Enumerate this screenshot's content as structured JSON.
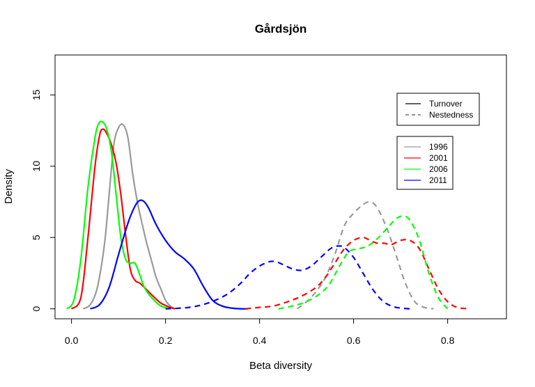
{
  "chart_data": {
    "type": "line",
    "title": "Gårdsjön",
    "xlabel": "Beta diversity",
    "ylabel": "Density",
    "xlim": [
      -0.035,
      0.925
    ],
    "ylim": [
      -0.7,
      17.8
    ],
    "xticks": [
      "0.0",
      "0.2",
      "0.4",
      "0.6",
      "0.8"
    ],
    "yticks": [
      "0",
      "5",
      "10",
      "15"
    ],
    "grid": false,
    "legends": [
      {
        "placement": "top-right",
        "entries": [
          {
            "label": "Turnover",
            "linestyle": "solid",
            "color": "#000000"
          },
          {
            "label": "Nestedness",
            "linestyle": "dashed",
            "color": "#555555"
          }
        ]
      },
      {
        "placement": "right",
        "entries": [
          {
            "label": "1996",
            "color": "#999999"
          },
          {
            "label": "2001",
            "color": "#ff0000"
          },
          {
            "label": "2006",
            "color": "#00ff00"
          },
          {
            "label": "2011",
            "color": "#0000ff"
          }
        ]
      }
    ],
    "series": [
      {
        "name": "1996",
        "kind": "Turnover",
        "color": "#999999",
        "dashed": false,
        "x": [
          0.025,
          0.04,
          0.055,
          0.07,
          0.08,
          0.09,
          0.1,
          0.11,
          0.12,
          0.13,
          0.14,
          0.15,
          0.16,
          0.17,
          0.18,
          0.19,
          0.2,
          0.21,
          0.22
        ],
        "y": [
          0,
          0.3,
          1.5,
          4.5,
          8.0,
          11.5,
          12.7,
          12.9,
          12.0,
          9.5,
          7.5,
          6.0,
          4.6,
          3.4,
          2.2,
          1.4,
          0.6,
          0.2,
          0
        ]
      },
      {
        "name": "2001",
        "kind": "Turnover",
        "color": "#ff0000",
        "dashed": false,
        "x": [
          0.0,
          0.02,
          0.035,
          0.05,
          0.06,
          0.067,
          0.075,
          0.085,
          0.095,
          0.105,
          0.115,
          0.125,
          0.135,
          0.145,
          0.155,
          0.17,
          0.19,
          0.21,
          0.22
        ],
        "y": [
          0,
          0.8,
          5.0,
          10.0,
          12.2,
          12.6,
          12.3,
          11.5,
          10.2,
          8.0,
          5.2,
          2.8,
          2.0,
          1.8,
          1.5,
          1.0,
          0.4,
          0.1,
          0
        ]
      },
      {
        "name": "2006",
        "kind": "Turnover",
        "color": "#00ff00",
        "dashed": false,
        "x": [
          -0.01,
          0.005,
          0.02,
          0.035,
          0.05,
          0.058,
          0.066,
          0.075,
          0.085,
          0.095,
          0.105,
          0.115,
          0.125,
          0.135,
          0.145,
          0.155,
          0.17,
          0.19,
          0.21
        ],
        "y": [
          0,
          0.6,
          3.5,
          8.5,
          12.0,
          13.0,
          13.1,
          12.6,
          11.0,
          8.0,
          5.0,
          3.5,
          3.2,
          3.2,
          2.4,
          1.5,
          0.8,
          0.2,
          0
        ]
      },
      {
        "name": "2011",
        "kind": "Turnover",
        "color": "#0000ff",
        "dashed": false,
        "x": [
          0.04,
          0.06,
          0.08,
          0.1,
          0.12,
          0.135,
          0.145,
          0.155,
          0.165,
          0.18,
          0.2,
          0.22,
          0.24,
          0.26,
          0.28,
          0.3,
          0.32,
          0.34,
          0.36,
          0.375
        ],
        "y": [
          0,
          0.3,
          1.5,
          3.8,
          6.0,
          7.2,
          7.6,
          7.5,
          7.0,
          5.9,
          4.8,
          4.0,
          3.5,
          2.8,
          1.6,
          0.6,
          0.2,
          0.05,
          0,
          0
        ]
      },
      {
        "name": "1996",
        "kind": "Nestedness",
        "color": "#999999",
        "dashed": true,
        "x": [
          0.48,
          0.5,
          0.52,
          0.54,
          0.56,
          0.58,
          0.6,
          0.62,
          0.635,
          0.65,
          0.67,
          0.69,
          0.71,
          0.73,
          0.75,
          0.77
        ],
        "y": [
          0,
          0.5,
          1.2,
          2.2,
          3.8,
          5.8,
          6.7,
          7.3,
          7.5,
          7.1,
          5.7,
          3.8,
          1.8,
          0.5,
          0.1,
          0
        ]
      },
      {
        "name": "2001",
        "kind": "Nestedness",
        "color": "#ff0000",
        "dashed": true,
        "x": [
          0.37,
          0.4,
          0.43,
          0.46,
          0.49,
          0.52,
          0.54,
          0.56,
          0.58,
          0.6,
          0.62,
          0.635,
          0.65,
          0.665,
          0.68,
          0.7,
          0.72,
          0.74,
          0.76,
          0.78,
          0.8,
          0.82,
          0.845
        ],
        "y": [
          0,
          0.1,
          0.2,
          0.5,
          0.9,
          1.5,
          2.2,
          3.2,
          4.2,
          4.8,
          5.0,
          4.8,
          4.6,
          4.6,
          4.5,
          4.8,
          4.8,
          4.2,
          2.8,
          1.4,
          0.5,
          0.1,
          0
        ]
      },
      {
        "name": "2006",
        "kind": "Nestedness",
        "color": "#00ff00",
        "dashed": true,
        "x": [
          0.44,
          0.47,
          0.5,
          0.53,
          0.55,
          0.57,
          0.59,
          0.61,
          0.63,
          0.65,
          0.67,
          0.69,
          0.705,
          0.72,
          0.74,
          0.76,
          0.78,
          0.8
        ],
        "y": [
          0,
          0.2,
          0.5,
          1.1,
          1.8,
          3.0,
          4.0,
          4.2,
          4.4,
          4.9,
          5.6,
          6.3,
          6.5,
          6.2,
          4.8,
          2.5,
          0.8,
          0
        ]
      },
      {
        "name": "2011",
        "kind": "Nestedness",
        "color": "#0000ff",
        "dashed": true,
        "x": [
          0.2,
          0.25,
          0.29,
          0.33,
          0.36,
          0.38,
          0.4,
          0.42,
          0.435,
          0.45,
          0.47,
          0.49,
          0.51,
          0.53,
          0.55,
          0.565,
          0.58,
          0.6,
          0.62,
          0.64,
          0.66,
          0.68,
          0.7,
          0.72
        ],
        "y": [
          0,
          0.1,
          0.4,
          1.0,
          1.8,
          2.5,
          3.0,
          3.3,
          3.3,
          3.1,
          2.8,
          2.7,
          3.0,
          3.6,
          4.2,
          4.4,
          4.3,
          3.6,
          2.5,
          1.4,
          0.6,
          0.2,
          0.05,
          0
        ]
      }
    ]
  }
}
